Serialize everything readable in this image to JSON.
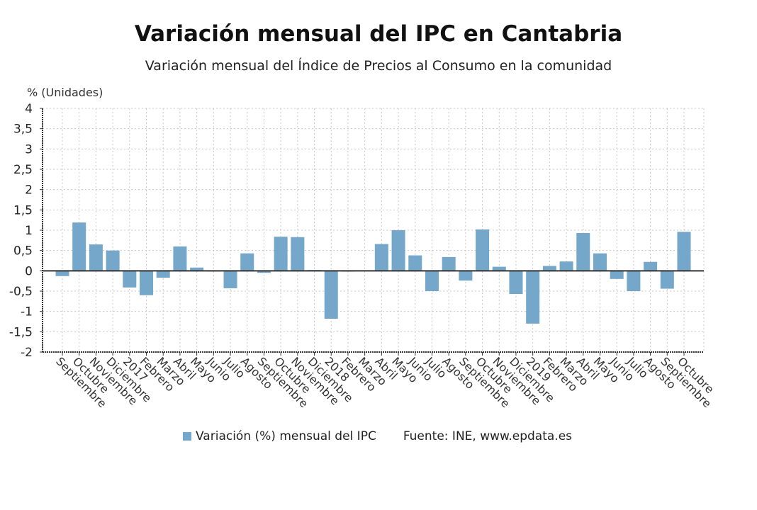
{
  "chart_data": {
    "type": "bar",
    "title": "Variación mensual del IPC en Cantabria",
    "subtitle": "Variación mensual del Índice de Precios al Consumo en la comunidad",
    "ylabel": "% (Unidades)",
    "xlabel": "",
    "ylim": [
      -2,
      4
    ],
    "yticks": [
      "4",
      "3,5",
      "3",
      "2,5",
      "2",
      "1,5",
      "1",
      "0,5",
      "0",
      "-0,5",
      "-1",
      "-1,5",
      "-2"
    ],
    "ytick_values": [
      4,
      3.5,
      3,
      2.5,
      2,
      1.5,
      1,
      0.5,
      0,
      -0.5,
      -1,
      -1.5,
      -2
    ],
    "grid": true,
    "legend_position": "bottom",
    "categories": [
      "Septiembre",
      "Octubre",
      "Noviembre",
      "Diciembre",
      "2017",
      "Febrero",
      "Marzo",
      "Abril",
      "Mayo",
      "Junio",
      "Julio",
      "Agosto",
      "Septiembre",
      "Octubre",
      "Noviembre",
      "Diciembre",
      "2018",
      "Febrero",
      "Marzo",
      "Abril",
      "Mayo",
      "Junio",
      "Julio",
      "Agosto",
      "Septiembre",
      "Octubre",
      "Noviembre",
      "Diciembre",
      "2019",
      "Febrero",
      "Marzo",
      "Abril",
      "Mayo",
      "Junio",
      "Julio",
      "Agosto",
      "Septiembre",
      "Octubre"
    ],
    "series": [
      {
        "name": "Variación (%) mensual del IPC",
        "color": "#74a7c9",
        "values": [
          -0.13,
          1.19,
          0.65,
          0.5,
          -0.41,
          -0.6,
          -0.17,
          0.6,
          0.08,
          0.0,
          -0.43,
          0.43,
          -0.05,
          0.84,
          0.83,
          0.02,
          -1.18,
          -0.02,
          0.01,
          0.66,
          1.0,
          0.38,
          -0.5,
          0.34,
          -0.24,
          1.02,
          0.1,
          -0.57,
          -1.3,
          0.12,
          0.23,
          0.93,
          0.43,
          -0.2,
          -0.5,
          0.22,
          -0.44,
          0.96
        ]
      }
    ],
    "source": "Fuente: INE, www.epdata.es"
  }
}
